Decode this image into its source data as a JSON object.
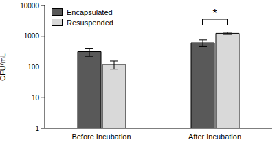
{
  "chart_data": {
    "type": "bar",
    "y_label": "CFU/mL",
    "categories": [
      "Before Incubation",
      "After Incubation"
    ],
    "series": [
      {
        "name": "Encapsulated",
        "color": "#595959",
        "values": [
          310,
          620
        ],
        "errors": [
          90,
          150
        ]
      },
      {
        "name": "Resuspended",
        "color": "#d9d9d9",
        "values": [
          120,
          1250
        ],
        "errors": [
          35,
          100
        ]
      }
    ],
    "log": "y",
    "ylim": [
      1,
      10000
    ],
    "yticks": [
      1,
      10,
      100,
      1000,
      10000
    ],
    "grid": false,
    "legend": "top-left",
    "annotations": [
      {
        "text": "*",
        "category": "After Incubation"
      }
    ]
  }
}
